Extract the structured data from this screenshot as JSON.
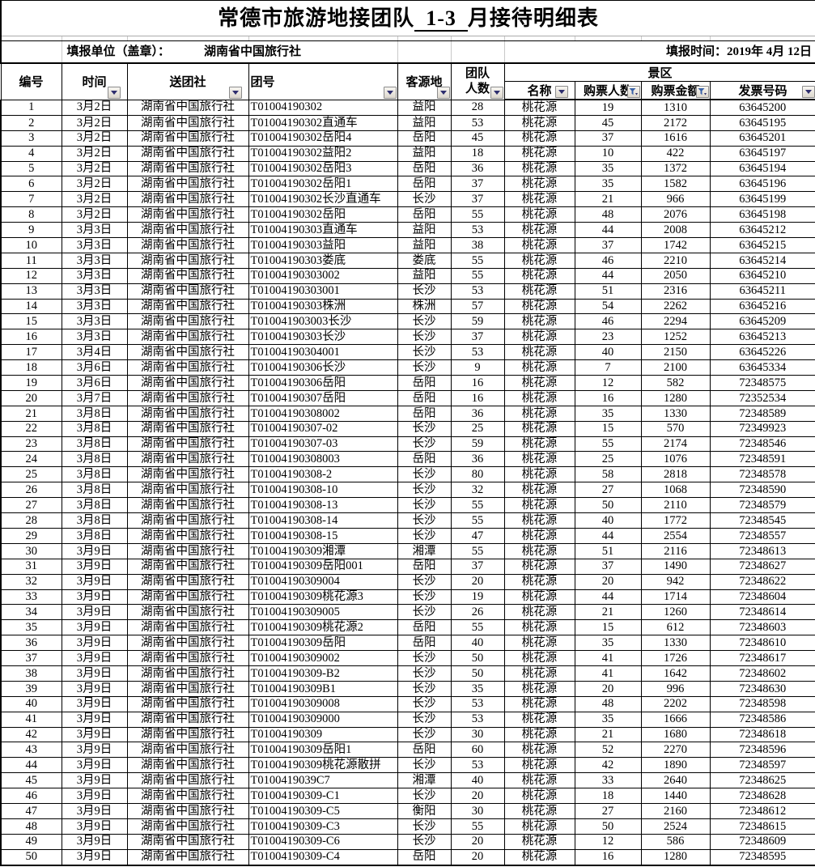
{
  "title": {
    "prefix": "常德市旅游地接团队",
    "underlined": "1-3",
    "suffix": "月接待明细表"
  },
  "meta": {
    "unit_label": "填报单位（盖章）：",
    "unit_value": "湖南省中国旅行社",
    "report_time": "填报时间：2019年 4月 12日"
  },
  "header": {
    "col_id": "编号",
    "col_time": "时间",
    "col_agency": "送团社",
    "col_group_no": "团号",
    "col_source": "客源地",
    "col_team_line1": "团队",
    "col_team_line2": "人数",
    "scenic_group": "景区",
    "col_name": "名称",
    "col_tickets": "购票人数",
    "col_amount": "购票金额",
    "col_invoice": "发票号码"
  },
  "icons": {
    "filter_dropdown": "▼ small navy triangle on gray 3D button",
    "filter_active": "blue funnel glyph on gray 3D button"
  },
  "colors": {
    "text": "#000000",
    "table_border": "#000000",
    "light_grid": "#c9c9c9",
    "button_face": "#e4dfd6",
    "button_border": "#8c8c8c",
    "dropdown_arrow": "#2e2e6e",
    "funnel": "#3a62a8"
  },
  "table": {
    "col_names": [
      "row-index",
      "date",
      "agency",
      "group-no",
      "source",
      "team-size",
      "scenic-name",
      "ticket-count",
      "ticket-amount",
      "invoice-no"
    ],
    "rows": [
      [
        "1",
        "3月2日",
        "湖南省中国旅行社",
        "T01004190302",
        "益阳",
        "28",
        "桃花源",
        "19",
        "1310",
        "63645200"
      ],
      [
        "2",
        "3月2日",
        "湖南省中国旅行社",
        "T01004190302直通车",
        "益阳",
        "53",
        "桃花源",
        "45",
        "2172",
        "63645195"
      ],
      [
        "3",
        "3月2日",
        "湖南省中国旅行社",
        "T01004190302岳阳4",
        "岳阳",
        "45",
        "桃花源",
        "37",
        "1616",
        "63645201"
      ],
      [
        "4",
        "3月2日",
        "湖南省中国旅行社",
        "T01004190302益阳2",
        "益阳",
        "18",
        "桃花源",
        "10",
        "422",
        "63645197"
      ],
      [
        "5",
        "3月2日",
        "湖南省中国旅行社",
        "T01004190302岳阳3",
        "岳阳",
        "36",
        "桃花源",
        "35",
        "1372",
        "63645194"
      ],
      [
        "6",
        "3月2日",
        "湖南省中国旅行社",
        "T01004190302岳阳1",
        "岳阳",
        "37",
        "桃花源",
        "35",
        "1582",
        "63645196"
      ],
      [
        "7",
        "3月2日",
        "湖南省中国旅行社",
        "T01004190302长沙直通车",
        "长沙",
        "37",
        "桃花源",
        "21",
        "966",
        "63645199"
      ],
      [
        "8",
        "3月2日",
        "湖南省中国旅行社",
        "T01004190302岳阳",
        "岳阳",
        "55",
        "桃花源",
        "48",
        "2076",
        "63645198"
      ],
      [
        "9",
        "3月3日",
        "湖南省中国旅行社",
        "T01004190303直通车",
        "益阳",
        "53",
        "桃花源",
        "44",
        "2008",
        "63645212"
      ],
      [
        "10",
        "3月3日",
        "湖南省中国旅行社",
        "T01004190303益阳",
        "益阳",
        "38",
        "桃花源",
        "37",
        "1742",
        "63645215"
      ],
      [
        "11",
        "3月3日",
        "湖南省中国旅行社",
        "T01004190303娄底",
        "娄底",
        "55",
        "桃花源",
        "46",
        "2210",
        "63645214"
      ],
      [
        "12",
        "3月3日",
        "湖南省中国旅行社",
        "T01004190303002",
        "益阳",
        "55",
        "桃花源",
        "44",
        "2050",
        "63645210"
      ],
      [
        "13",
        "3月3日",
        "湖南省中国旅行社",
        "T01004190303001",
        "长沙",
        "53",
        "桃花源",
        "51",
        "2316",
        "63645211"
      ],
      [
        "14",
        "3月3日",
        "湖南省中国旅行社",
        "T01004190303株洲",
        "株洲",
        "57",
        "桃花源",
        "54",
        "2262",
        "63645216"
      ],
      [
        "15",
        "3月3日",
        "湖南省中国旅行社",
        "T010041903003长沙",
        "长沙",
        "59",
        "桃花源",
        "46",
        "2294",
        "63645209"
      ],
      [
        "16",
        "3月3日",
        "湖南省中国旅行社",
        "T01004190303长沙",
        "长沙",
        "37",
        "桃花源",
        "23",
        "1252",
        "63645213"
      ],
      [
        "17",
        "3月4日",
        "湖南省中国旅行社",
        "T01004190304001",
        "长沙",
        "53",
        "桃花源",
        "40",
        "2150",
        "63645226"
      ],
      [
        "18",
        "3月6日",
        "湖南省中国旅行社",
        "T01004190306长沙",
        "长沙",
        "9",
        "桃花源",
        "7",
        "2100",
        "63645334"
      ],
      [
        "19",
        "3月6日",
        "湖南省中国旅行社",
        "T01004190306岳阳",
        "岳阳",
        "16",
        "桃花源",
        "12",
        "582",
        "72348575"
      ],
      [
        "20",
        "3月7日",
        "湖南省中国旅行社",
        "T01004190307岳阳",
        "岳阳",
        "16",
        "桃花源",
        "16",
        "1280",
        "72352534"
      ],
      [
        "21",
        "3月8日",
        "湖南省中国旅行社",
        "T01004190308002",
        "岳阳",
        "36",
        "桃花源",
        "35",
        "1330",
        "72348589"
      ],
      [
        "22",
        "3月8日",
        "湖南省中国旅行社",
        "T01004190307-02",
        "长沙",
        "25",
        "桃花源",
        "15",
        "570",
        "72349923"
      ],
      [
        "23",
        "3月8日",
        "湖南省中国旅行社",
        "T01004190307-03",
        "长沙",
        "59",
        "桃花源",
        "55",
        "2174",
        "72348546"
      ],
      [
        "24",
        "3月8日",
        "湖南省中国旅行社",
        "T01004190308003",
        "岳阳",
        "36",
        "桃花源",
        "25",
        "1076",
        "72348591"
      ],
      [
        "25",
        "3月8日",
        "湖南省中国旅行社",
        "T01004190308-2",
        "长沙",
        "80",
        "桃花源",
        "58",
        "2818",
        "72348578"
      ],
      [
        "26",
        "3月8日",
        "湖南省中国旅行社",
        "T01004190308-10",
        "长沙",
        "32",
        "桃花源",
        "27",
        "1068",
        "72348590"
      ],
      [
        "27",
        "3月8日",
        "湖南省中国旅行社",
        "T01004190308-13",
        "长沙",
        "55",
        "桃花源",
        "50",
        "2110",
        "72348579"
      ],
      [
        "28",
        "3月8日",
        "湖南省中国旅行社",
        "T01004190308-14",
        "长沙",
        "55",
        "桃花源",
        "40",
        "1772",
        "72348545"
      ],
      [
        "29",
        "3月8日",
        "湖南省中国旅行社",
        "T01004190308-15",
        "长沙",
        "47",
        "桃花源",
        "44",
        "2554",
        "72348557"
      ],
      [
        "30",
        "3月9日",
        "湖南省中国旅行社",
        "T01004190309湘潭",
        "湘潭",
        "55",
        "桃花源",
        "51",
        "2116",
        "72348613"
      ],
      [
        "31",
        "3月9日",
        "湖南省中国旅行社",
        "T01004190309岳阳001",
        "岳阳",
        "37",
        "桃花源",
        "37",
        "1490",
        "72348627"
      ],
      [
        "32",
        "3月9日",
        "湖南省中国旅行社",
        "T01004190309004",
        "长沙",
        "20",
        "桃花源",
        "20",
        "942",
        "72348622"
      ],
      [
        "33",
        "3月9日",
        "湖南省中国旅行社",
        "T01004190309桃花源3",
        "长沙",
        "19",
        "桃花源",
        "44",
        "1714",
        "72348604"
      ],
      [
        "34",
        "3月9日",
        "湖南省中国旅行社",
        "T01004190309005",
        "长沙",
        "26",
        "桃花源",
        "21",
        "1260",
        "72348614"
      ],
      [
        "35",
        "3月9日",
        "湖南省中国旅行社",
        "T01004190309桃花源2",
        "岳阳",
        "55",
        "桃花源",
        "15",
        "612",
        "72348603"
      ],
      [
        "36",
        "3月9日",
        "湖南省中国旅行社",
        "T01004190309岳阳",
        "岳阳",
        "40",
        "桃花源",
        "35",
        "1330",
        "72348610"
      ],
      [
        "37",
        "3月9日",
        "湖南省中国旅行社",
        "T01004190309002",
        "长沙",
        "50",
        "桃花源",
        "41",
        "1726",
        "72348617"
      ],
      [
        "38",
        "3月9日",
        "湖南省中国旅行社",
        "T01004190309-B2",
        "长沙",
        "50",
        "桃花源",
        "41",
        "1642",
        "72348602"
      ],
      [
        "39",
        "3月9日",
        "湖南省中国旅行社",
        "T01004190309B1",
        "长沙",
        "35",
        "桃花源",
        "20",
        "996",
        "72348630"
      ],
      [
        "40",
        "3月9日",
        "湖南省中国旅行社",
        "T01004190309008",
        "长沙",
        "53",
        "桃花源",
        "48",
        "2202",
        "72348598"
      ],
      [
        "41",
        "3月9日",
        "湖南省中国旅行社",
        "T01004190309000",
        "长沙",
        "53",
        "桃花源",
        "35",
        "1666",
        "72348586"
      ],
      [
        "42",
        "3月9日",
        "湖南省中国旅行社",
        "T01004190309",
        "长沙",
        "30",
        "桃花源",
        "21",
        "1680",
        "72348618"
      ],
      [
        "43",
        "3月9日",
        "湖南省中国旅行社",
        "T01004190309岳阳1",
        "岳阳",
        "60",
        "桃花源",
        "52",
        "2270",
        "72348596"
      ],
      [
        "44",
        "3月9日",
        "湖南省中国旅行社",
        "T01004190309桃花源散拼",
        "长沙",
        "53",
        "桃花源",
        "42",
        "1890",
        "72348597"
      ],
      [
        "45",
        "3月9日",
        "湖南省中国旅行社",
        "T0100419039C7",
        "湘潭",
        "40",
        "桃花源",
        "33",
        "2640",
        "72348625"
      ],
      [
        "46",
        "3月9日",
        "湖南省中国旅行社",
        "T01004190309-C1",
        "长沙",
        "20",
        "桃花源",
        "18",
        "1440",
        "72348628"
      ],
      [
        "47",
        "3月9日",
        "湖南省中国旅行社",
        "T01004190309-C5",
        "衡阳",
        "30",
        "桃花源",
        "27",
        "2160",
        "72348612"
      ],
      [
        "48",
        "3月9日",
        "湖南省中国旅行社",
        "T01004190309-C3",
        "长沙",
        "55",
        "桃花源",
        "50",
        "2524",
        "72348615"
      ],
      [
        "49",
        "3月9日",
        "湖南省中国旅行社",
        "T01004190309-C6",
        "长沙",
        "20",
        "桃花源",
        "12",
        "586",
        "72348609"
      ],
      [
        "50",
        "3月9日",
        "湖南省中国旅行社",
        "T01004190309-C4",
        "岳阳",
        "20",
        "桃花源",
        "16",
        "1280",
        "72348595"
      ]
    ]
  }
}
